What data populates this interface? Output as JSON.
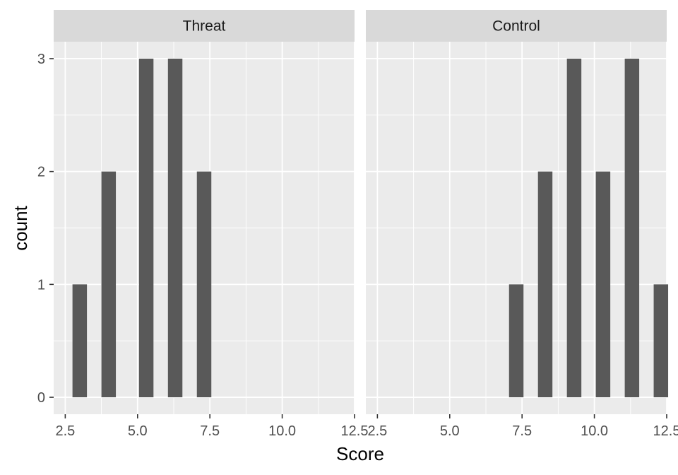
{
  "chart_data": {
    "type": "bar",
    "xlabel": "Score",
    "ylabel": "count",
    "xlim": [
      2.1,
      12.5
    ],
    "ylim": [
      -0.15,
      3.15
    ],
    "x_ticks": [
      2.5,
      5.0,
      7.5,
      10.0,
      12.5
    ],
    "x_tick_labels": [
      "2.5",
      "5.0",
      "7.5",
      "10.0",
      "12.5"
    ],
    "y_ticks": [
      0,
      1,
      2,
      3
    ],
    "y_tick_labels": [
      "0",
      "1",
      "2",
      "3"
    ],
    "bar_width": 0.5,
    "bar_color": "#595959",
    "panel_color": "#ebebeb",
    "strip_color": "#d9d9d9",
    "grid": true,
    "panels": [
      {
        "strip": "Threat",
        "bars": [
          {
            "x": 3,
            "count": 1
          },
          {
            "x": 4,
            "count": 2
          },
          {
            "x": 5.3,
            "count": 3
          },
          {
            "x": 6.3,
            "count": 3
          },
          {
            "x": 7.3,
            "count": 2
          }
        ]
      },
      {
        "strip": "Control",
        "bars": [
          {
            "x": 7.3,
            "count": 1
          },
          {
            "x": 8.3,
            "count": 2
          },
          {
            "x": 9.3,
            "count": 3
          },
          {
            "x": 10.3,
            "count": 2
          },
          {
            "x": 11.3,
            "count": 3
          },
          {
            "x": 12.3,
            "count": 1
          }
        ]
      }
    ]
  }
}
